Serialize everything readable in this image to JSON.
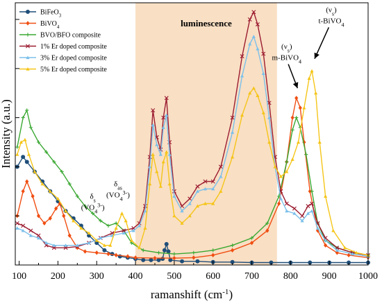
{
  "chart_data": {
    "type": "line",
    "title": "",
    "xlabel": "ramanshift (cm",
    "xlabel_sup": "-1",
    "xlabel_close": ")",
    "ylabel": "Intensity (a.u.)",
    "xlim": [
      90,
      1000
    ],
    "ylim": [
      0,
      1.0
    ],
    "x_ticks": [
      100,
      200,
      300,
      400,
      500,
      600,
      700,
      800,
      900,
      1000
    ],
    "y_tick_labels": "none",
    "grid": false,
    "legend_position": "top-left",
    "shaded_region": {
      "label": "luminescence",
      "x_start": 400,
      "x_end": 765,
      "color": "#f9dfc4"
    },
    "series": [
      {
        "name": "BiFeO",
        "name_sub": "3",
        "color": "#1f4e79",
        "marker": "circle",
        "points": [
          [
            95,
            0.4
          ],
          [
            110,
            0.44
          ],
          [
            120,
            0.42
          ],
          [
            140,
            0.38
          ],
          [
            160,
            0.34
          ],
          [
            180,
            0.3
          ],
          [
            200,
            0.26
          ],
          [
            220,
            0.22
          ],
          [
            240,
            0.19
          ],
          [
            260,
            0.16
          ],
          [
            280,
            0.12
          ],
          [
            300,
            0.09
          ],
          [
            320,
            0.06
          ],
          [
            340,
            0.045
          ],
          [
            360,
            0.035
          ],
          [
            380,
            0.03
          ],
          [
            400,
            0.025
          ],
          [
            420,
            0.02
          ],
          [
            440,
            0.02
          ],
          [
            460,
            0.02
          ],
          [
            470,
            0.025
          ],
          [
            475,
            0.06
          ],
          [
            480,
            0.085
          ],
          [
            485,
            0.055
          ],
          [
            490,
            0.02
          ],
          [
            520,
            0.015
          ],
          [
            560,
            0.015
          ],
          [
            600,
            0.012
          ],
          [
            650,
            0.012
          ],
          [
            700,
            0.01
          ],
          [
            750,
            0.01
          ],
          [
            800,
            0.01
          ],
          [
            850,
            0.01
          ],
          [
            900,
            0.01
          ],
          [
            950,
            0.01
          ],
          [
            1000,
            0.01
          ]
        ]
      },
      {
        "name": "BiVO",
        "name_sub": "4",
        "color": "#f04e12",
        "marker": "diamond",
        "points": [
          [
            95,
            0.2
          ],
          [
            110,
            0.3
          ],
          [
            120,
            0.34
          ],
          [
            135,
            0.28
          ],
          [
            150,
            0.2
          ],
          [
            165,
            0.17
          ],
          [
            180,
            0.19
          ],
          [
            195,
            0.23
          ],
          [
            205,
            0.25
          ],
          [
            215,
            0.2
          ],
          [
            230,
            0.12
          ],
          [
            250,
            0.07
          ],
          [
            270,
            0.055
          ],
          [
            300,
            0.05
          ],
          [
            330,
            0.045
          ],
          [
            350,
            0.04
          ],
          [
            380,
            0.035
          ],
          [
            400,
            0.03
          ],
          [
            450,
            0.028
          ],
          [
            500,
            0.028
          ],
          [
            550,
            0.03
          ],
          [
            600,
            0.04
          ],
          [
            650,
            0.06
          ],
          [
            700,
            0.09
          ],
          [
            740,
            0.14
          ],
          [
            770,
            0.25
          ],
          [
            790,
            0.42
          ],
          [
            805,
            0.6
          ],
          [
            815,
            0.68
          ],
          [
            825,
            0.64
          ],
          [
            835,
            0.5
          ],
          [
            850,
            0.3
          ],
          [
            870,
            0.14
          ],
          [
            890,
            0.08
          ],
          [
            920,
            0.05
          ],
          [
            950,
            0.04
          ],
          [
            1000,
            0.03
          ]
        ]
      },
      {
        "name": "BVO/BFO composite",
        "name_sub": "",
        "color": "#3aa832",
        "marker": "plus",
        "points": [
          [
            95,
            0.48
          ],
          [
            110,
            0.6
          ],
          [
            120,
            0.63
          ],
          [
            130,
            0.56
          ],
          [
            150,
            0.5
          ],
          [
            170,
            0.46
          ],
          [
            190,
            0.42
          ],
          [
            210,
            0.38
          ],
          [
            230,
            0.33
          ],
          [
            250,
            0.28
          ],
          [
            270,
            0.24
          ],
          [
            290,
            0.21
          ],
          [
            310,
            0.18
          ],
          [
            330,
            0.16
          ],
          [
            350,
            0.17
          ],
          [
            370,
            0.14
          ],
          [
            390,
            0.09
          ],
          [
            420,
            0.06
          ],
          [
            460,
            0.05
          ],
          [
            500,
            0.045
          ],
          [
            550,
            0.05
          ],
          [
            600,
            0.06
          ],
          [
            650,
            0.08
          ],
          [
            700,
            0.11
          ],
          [
            740,
            0.17
          ],
          [
            770,
            0.28
          ],
          [
            790,
            0.42
          ],
          [
            805,
            0.55
          ],
          [
            815,
            0.6
          ],
          [
            825,
            0.56
          ],
          [
            840,
            0.45
          ],
          [
            855,
            0.3
          ],
          [
            870,
            0.17
          ],
          [
            890,
            0.1
          ],
          [
            920,
            0.07
          ],
          [
            960,
            0.05
          ],
          [
            1000,
            0.04
          ]
        ]
      },
      {
        "name": "1% Er doped composite",
        "name_sub": "",
        "color": "#9b1b30",
        "marker": "x",
        "points": [
          [
            95,
            0.17
          ],
          [
            110,
            0.16
          ],
          [
            130,
            0.14
          ],
          [
            150,
            0.12
          ],
          [
            170,
            0.08
          ],
          [
            190,
            0.07
          ],
          [
            220,
            0.07
          ],
          [
            250,
            0.075
          ],
          [
            280,
            0.09
          ],
          [
            310,
            0.11
          ],
          [
            340,
            0.13
          ],
          [
            370,
            0.14
          ],
          [
            395,
            0.15
          ],
          [
            410,
            0.17
          ],
          [
            425,
            0.24
          ],
          [
            437,
            0.44
          ],
          [
            445,
            0.63
          ],
          [
            455,
            0.52
          ],
          [
            465,
            0.47
          ],
          [
            472,
            0.6
          ],
          [
            480,
            0.68
          ],
          [
            488,
            0.5
          ],
          [
            500,
            0.3
          ],
          [
            520,
            0.24
          ],
          [
            540,
            0.27
          ],
          [
            560,
            0.32
          ],
          [
            580,
            0.34
          ],
          [
            600,
            0.34
          ],
          [
            620,
            0.4
          ],
          [
            650,
            0.6
          ],
          [
            675,
            0.85
          ],
          [
            695,
            1.0
          ],
          [
            705,
            1.03
          ],
          [
            715,
            0.98
          ],
          [
            730,
            0.86
          ],
          [
            745,
            0.66
          ],
          [
            760,
            0.44
          ],
          [
            775,
            0.3
          ],
          [
            790,
            0.25
          ],
          [
            810,
            0.23
          ],
          [
            830,
            0.2
          ],
          [
            845,
            0.24
          ],
          [
            855,
            0.25
          ],
          [
            870,
            0.17
          ],
          [
            890,
            0.11
          ],
          [
            920,
            0.07
          ],
          [
            960,
            0.05
          ],
          [
            1000,
            0.04
          ]
        ]
      },
      {
        "name": "3% Er doped composite",
        "name_sub": "",
        "color": "#7cc0ea",
        "marker": "triangle-up",
        "points": [
          [
            95,
            0.15
          ],
          [
            110,
            0.14
          ],
          [
            130,
            0.12
          ],
          [
            150,
            0.11
          ],
          [
            170,
            0.09
          ],
          [
            190,
            0.08
          ],
          [
            220,
            0.08
          ],
          [
            250,
            0.08
          ],
          [
            280,
            0.09
          ],
          [
            310,
            0.11
          ],
          [
            340,
            0.12
          ],
          [
            370,
            0.13
          ],
          [
            395,
            0.14
          ],
          [
            410,
            0.16
          ],
          [
            425,
            0.22
          ],
          [
            437,
            0.4
          ],
          [
            445,
            0.57
          ],
          [
            455,
            0.49
          ],
          [
            465,
            0.45
          ],
          [
            472,
            0.56
          ],
          [
            480,
            0.61
          ],
          [
            488,
            0.45
          ],
          [
            500,
            0.28
          ],
          [
            520,
            0.22
          ],
          [
            540,
            0.25
          ],
          [
            560,
            0.3
          ],
          [
            580,
            0.31
          ],
          [
            600,
            0.31
          ],
          [
            620,
            0.36
          ],
          [
            650,
            0.54
          ],
          [
            675,
            0.77
          ],
          [
            695,
            0.9
          ],
          [
            705,
            0.93
          ],
          [
            715,
            0.88
          ],
          [
            730,
            0.78
          ],
          [
            745,
            0.6
          ],
          [
            760,
            0.4
          ],
          [
            775,
            0.27
          ],
          [
            790,
            0.22
          ],
          [
            810,
            0.21
          ],
          [
            830,
            0.18
          ],
          [
            845,
            0.21
          ],
          [
            855,
            0.22
          ],
          [
            870,
            0.15
          ],
          [
            890,
            0.1
          ],
          [
            920,
            0.06
          ],
          [
            960,
            0.045
          ],
          [
            1000,
            0.035
          ]
        ]
      },
      {
        "name": "5% Er doped composite",
        "name_sub": "",
        "color": "#f5c518",
        "marker": "triangle-up",
        "points": [
          [
            95,
            0.45
          ],
          [
            105,
            0.5
          ],
          [
            115,
            0.51
          ],
          [
            125,
            0.45
          ],
          [
            140,
            0.38
          ],
          [
            160,
            0.33
          ],
          [
            180,
            0.3
          ],
          [
            200,
            0.27
          ],
          [
            220,
            0.22
          ],
          [
            240,
            0.18
          ],
          [
            260,
            0.15
          ],
          [
            280,
            0.13
          ],
          [
            300,
            0.1
          ],
          [
            320,
            0.08
          ],
          [
            335,
            0.08
          ],
          [
            350,
            0.15
          ],
          [
            365,
            0.21
          ],
          [
            375,
            0.18
          ],
          [
            390,
            0.1
          ],
          [
            410,
            0.07
          ],
          [
            425,
            0.15
          ],
          [
            437,
            0.33
          ],
          [
            445,
            0.45
          ],
          [
            455,
            0.38
          ],
          [
            465,
            0.32
          ],
          [
            472,
            0.42
          ],
          [
            480,
            0.46
          ],
          [
            488,
            0.33
          ],
          [
            500,
            0.2
          ],
          [
            520,
            0.17
          ],
          [
            540,
            0.2
          ],
          [
            560,
            0.24
          ],
          [
            580,
            0.25
          ],
          [
            600,
            0.25
          ],
          [
            620,
            0.3
          ],
          [
            650,
            0.44
          ],
          [
            675,
            0.61
          ],
          [
            695,
            0.7
          ],
          [
            705,
            0.72
          ],
          [
            715,
            0.69
          ],
          [
            730,
            0.62
          ],
          [
            745,
            0.5
          ],
          [
            760,
            0.4
          ],
          [
            775,
            0.36
          ],
          [
            790,
            0.38
          ],
          [
            805,
            0.43
          ],
          [
            820,
            0.5
          ],
          [
            835,
            0.64
          ],
          [
            848,
            0.76
          ],
          [
            855,
            0.79
          ],
          [
            865,
            0.7
          ],
          [
            875,
            0.5
          ],
          [
            890,
            0.28
          ],
          [
            910,
            0.14
          ],
          [
            940,
            0.07
          ],
          [
            970,
            0.05
          ],
          [
            1000,
            0.04
          ]
        ]
      }
    ],
    "annotations": [
      {
        "id": "delta-s",
        "line1": "δ",
        "line1_sub": "s",
        "line2": "(VO",
        "line2_sub": "4",
        "line2_sup": "3-",
        "line2_close": ")",
        "x": 290,
        "y": 0.27
      },
      {
        "id": "delta-as",
        "line1": "δ",
        "line1_sub": "as",
        "line2": "(VO",
        "line2_sub": "4",
        "line2_sup": "3-",
        "line2_close": ")",
        "x": 355,
        "y": 0.32
      },
      {
        "id": "m-bivo4",
        "line1": "(ν",
        "line1_sub": "s",
        "line1_close": ")",
        "line2": "m-BiVO",
        "line2_sub": "4",
        "x": 790,
        "y": 0.88,
        "arrow_to": [
          818,
          0.72
        ]
      },
      {
        "id": "t-bivo4",
        "line1": "(ν",
        "line1_sub": "s",
        "line1_close": ")",
        "line2": "t-BiVO",
        "line2_sub": "4",
        "x": 905,
        "y": 1.03,
        "arrow_to": [
          862,
          0.84
        ]
      }
    ]
  }
}
